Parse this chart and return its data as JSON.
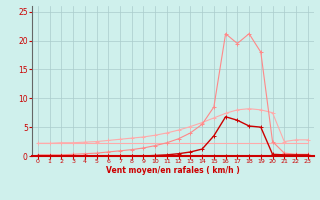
{
  "xlabel": "Vent moyen/en rafales ( km/h )",
  "ylabel": "",
  "xlim": [
    -0.5,
    23.5
  ],
  "ylim": [
    0,
    26
  ],
  "yticks": [
    0,
    5,
    10,
    15,
    20,
    25
  ],
  "xticks": [
    0,
    1,
    2,
    3,
    4,
    5,
    6,
    7,
    8,
    9,
    10,
    11,
    12,
    13,
    14,
    15,
    16,
    17,
    18,
    19,
    20,
    21,
    22,
    23
  ],
  "background_color": "#cff0ec",
  "grid_color": "#aacccc",
  "lines": [
    {
      "x": [
        0,
        23
      ],
      "y": [
        2.2,
        2.2
      ],
      "color": "#ffaaaa",
      "marker": null,
      "markersize": 3,
      "linewidth": 0.8
    },
    {
      "x": [
        0,
        1,
        2,
        3,
        4,
        5,
        6,
        7,
        8,
        9,
        10,
        11,
        12,
        13,
        14,
        15,
        16,
        17,
        18,
        19,
        20,
        21,
        22,
        23
      ],
      "y": [
        2.2,
        2.2,
        2.3,
        2.3,
        2.4,
        2.5,
        2.7,
        2.9,
        3.1,
        3.3,
        3.6,
        4.0,
        4.5,
        5.1,
        5.8,
        6.6,
        7.4,
        8.0,
        8.2,
        8.0,
        7.5,
        2.5,
        2.8,
        2.8
      ],
      "color": "#ffaaaa",
      "marker": "+",
      "markersize": 3,
      "linewidth": 0.8
    },
    {
      "x": [
        0,
        1,
        2,
        3,
        4,
        5,
        6,
        7,
        8,
        9,
        10,
        11,
        12,
        13,
        14,
        15,
        16,
        17,
        18,
        19,
        20,
        21,
        22,
        23
      ],
      "y": [
        0.2,
        0.2,
        0.2,
        0.3,
        0.4,
        0.5,
        0.7,
        0.9,
        1.1,
        1.4,
        1.8,
        2.3,
        3.0,
        4.0,
        5.5,
        8.5,
        21.2,
        19.5,
        21.2,
        18.0,
        2.5,
        0.5,
        0.3,
        0.3
      ],
      "color": "#ff8888",
      "marker": "+",
      "markersize": 3,
      "linewidth": 0.8
    },
    {
      "x": [
        0,
        1,
        2,
        3,
        4,
        5,
        6,
        7,
        8,
        9,
        10,
        11,
        12,
        13,
        14,
        15,
        16,
        17,
        18,
        19,
        20,
        21,
        22,
        23
      ],
      "y": [
        0,
        0,
        0,
        0,
        0,
        0,
        0,
        0,
        0,
        0,
        0.1,
        0.2,
        0.4,
        0.7,
        1.2,
        3.5,
        6.8,
        6.2,
        5.2,
        5.0,
        0.3,
        0.2,
        0.2,
        0.2
      ],
      "color": "#cc0000",
      "marker": "+",
      "markersize": 3,
      "linewidth": 1.0
    },
    {
      "x": [
        0,
        1,
        2,
        3,
        4,
        5,
        6,
        7,
        8,
        9,
        10,
        11,
        12,
        13,
        14,
        15,
        16,
        17,
        18,
        19,
        20,
        21,
        22,
        23
      ],
      "y": [
        0,
        0,
        0,
        0,
        0,
        0,
        0,
        0,
        0,
        0,
        0,
        0,
        0,
        0,
        0,
        0,
        0,
        0,
        0,
        0,
        0,
        0,
        0,
        0
      ],
      "color": "#cc0000",
      "marker": "+",
      "markersize": 3,
      "linewidth": 0.8
    }
  ]
}
